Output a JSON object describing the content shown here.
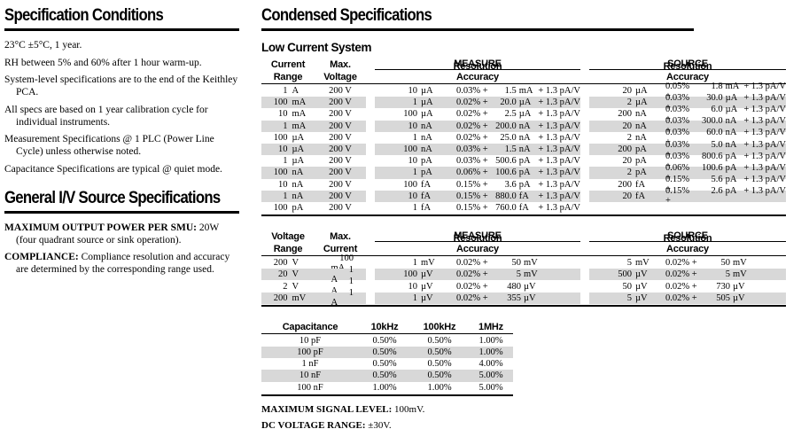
{
  "colors": {
    "stripe_gray": "#d8d8d8",
    "text": "#000000"
  },
  "left": {
    "section1": {
      "title": "Specification Conditions",
      "items": [
        "23°C ±5°C, 1 year.",
        "RH between 5% and 60% after 1 hour warm-up.",
        "System-level specifications are to the end of the Keithley PCA.",
        "All specs are based on 1 year calibration cycle for individual instruments.",
        "Measurement Specifications @ 1 PLC (Power Line Cycle) unless otherwise noted.",
        "Capacitance Specifications are typical @ quiet mode."
      ]
    },
    "section2": {
      "title": "General I/V Source Specifications",
      "items": [
        {
          "label": "MAXIMUM OUTPUT POWER PER SMU:",
          "text": " 20W (four quadrant source or sink operation)."
        },
        {
          "label": "COMPLIANCE:",
          "text": " Compliance resolution and accuracy are determined by the corresponding range used."
        }
      ]
    }
  },
  "right": {
    "title": "Condensed Specifications",
    "low_current": {
      "subtitle": "Low Current System",
      "head": {
        "c1a": "Current",
        "c1b": "Range",
        "c2a": "Max.",
        "c2b": "Voltage",
        "measure": "MEASURE",
        "source": "SOURCE",
        "res": "Resolution",
        "acc": "Accuracy"
      },
      "rows": [
        {
          "rv": "1",
          "ru": "A",
          "mv": "200 V",
          "mrv": "10",
          "mru": "µA",
          "mp": "0.03% +",
          "mval": "1.5",
          "mu": "mA",
          "mt": "+ 1.3 pA/V",
          "srv": "20",
          "sru": "µA",
          "sp": "0.05% +",
          "sval": "1.8",
          "su": "mA",
          "st": "+ 1.3 pA/V"
        },
        {
          "rv": "100",
          "ru": "mA",
          "mv": "200 V",
          "mrv": "1",
          "mru": "µA",
          "mp": "0.02% +",
          "mval": "20.0",
          "mu": "µA",
          "mt": "+ 1.3 pA/V",
          "srv": "2",
          "sru": "µA",
          "sp": "0.03% +",
          "sval": "30.0",
          "su": "µA",
          "st": "+ 1.3 pA/V"
        },
        {
          "rv": "10",
          "ru": "mA",
          "mv": "200 V",
          "mrv": "100",
          "mru": "µA",
          "mp": "0.02% +",
          "mval": "2.5",
          "mu": "µA",
          "mt": "+ 1.3 pA/V",
          "srv": "200",
          "sru": "nA",
          "sp": "0.03% +",
          "sval": "6.0",
          "su": "µA",
          "st": "+ 1.3 pA/V"
        },
        {
          "rv": "1",
          "ru": "mA",
          "mv": "200 V",
          "mrv": "10",
          "mru": "nA",
          "mp": "0.02% +",
          "mval": "200.0",
          "mu": "nA",
          "mt": "+ 1.3 pA/V",
          "srv": "20",
          "sru": "nA",
          "sp": "0.03% +",
          "sval": "300.0",
          "su": "nA",
          "st": "+ 1.3 pA/V"
        },
        {
          "rv": "100",
          "ru": "µA",
          "mv": "200 V",
          "mrv": "1",
          "mru": "nA",
          "mp": "0.02% +",
          "mval": "25.0",
          "mu": "nA",
          "mt": "+ 1.3 pA/V",
          "srv": "2",
          "sru": "nA",
          "sp": "0.03% +",
          "sval": "60.0",
          "su": "nA",
          "st": "+ 1.3 pA/V"
        },
        {
          "rv": "10",
          "ru": "µA",
          "mv": "200 V",
          "mrv": "100",
          "mru": "nA",
          "mp": "0.03% +",
          "mval": "1.5",
          "mu": "nA",
          "mt": "+ 1.3 pA/V",
          "srv": "200",
          "sru": "pA",
          "sp": "0.03% +",
          "sval": "5.0",
          "su": "nA",
          "st": "+ 1.3 pA/V"
        },
        {
          "rv": "1",
          "ru": "µA",
          "mv": "200 V",
          "mrv": "10",
          "mru": "pA",
          "mp": "0.03% +",
          "mval": "500.6",
          "mu": "pA",
          "mt": "+ 1.3 pA/V",
          "srv": "20",
          "sru": "pA",
          "sp": "0.03% +",
          "sval": "800.6",
          "su": "pA",
          "st": "+ 1.3 pA/V"
        },
        {
          "rv": "100",
          "ru": "nA",
          "mv": "200 V",
          "mrv": "1",
          "mru": "pA",
          "mp": "0.06% +",
          "mval": "100.6",
          "mu": "pA",
          "mt": "+ 1.3 pA/V",
          "srv": "2",
          "sru": "pA",
          "sp": "0.06% +",
          "sval": "100.6",
          "su": "pA",
          "st": "+ 1.3 pA/V"
        },
        {
          "rv": "10",
          "ru": "nA",
          "mv": "200 V",
          "mrv": "100",
          "mru": "fA",
          "mp": "0.15% +",
          "mval": "3.6",
          "mu": "pA",
          "mt": "+ 1.3 pA/V",
          "srv": "200",
          "sru": "fA",
          "sp": "0.15% +",
          "sval": "5.6",
          "su": "pA",
          "st": "+ 1.3 pA/V"
        },
        {
          "rv": "1",
          "ru": "nA",
          "mv": "200 V",
          "mrv": "10",
          "mru": "fA",
          "mp": "0.15% +",
          "mval": "880.0",
          "mu": "fA",
          "mt": "+ 1.3 pA/V",
          "srv": "20",
          "sru": "fA",
          "sp": "0.15% +",
          "sval": "2.6",
          "su": "pA",
          "st": "+ 1.3 pA/V"
        },
        {
          "rv": "100",
          "ru": "pA",
          "mv": "200 V",
          "mrv": "1",
          "mru": "fA",
          "mp": "0.15% +",
          "mval": "760.0",
          "mu": "fA",
          "mt": "+ 1.3 pA/V",
          "srv": "",
          "sru": "",
          "sp": "",
          "sval": "",
          "su": "",
          "st": ""
        }
      ]
    },
    "voltage": {
      "head": {
        "c1a": "Voltage",
        "c1b": "Range",
        "c2a": "Max.",
        "c2b": "Current",
        "measure": "MEASURE",
        "source": "SOURCE",
        "res": "Resolution",
        "acc": "Accuracy"
      },
      "rows": [
        {
          "rv": "200",
          "ru": "V",
          "mcv": "100",
          "mcu": "mA",
          "mrv": "1",
          "mru": "mV",
          "mp": "0.02% +",
          "mval": "50",
          "mu": "mV",
          "srv": "5",
          "sru": "mV",
          "sp": "0.02% +",
          "sval": "50",
          "su": "mV"
        },
        {
          "rv": "20",
          "ru": "V",
          "mcv": "1",
          "mcu": "A",
          "mrv": "100",
          "mru": "µV",
          "mp": "0.02% +",
          "mval": "5",
          "mu": "mV",
          "srv": "500",
          "sru": "µV",
          "sp": "0.02% +",
          "sval": "5",
          "su": "mV"
        },
        {
          "rv": "2",
          "ru": "V",
          "mcv": "1",
          "mcu": "A",
          "mrv": "10",
          "mru": "µV",
          "mp": "0.02% +",
          "mval": "480",
          "mu": "µV",
          "srv": "50",
          "sru": "µV",
          "sp": "0.02% +",
          "sval": "730",
          "su": "µV"
        },
        {
          "rv": "200",
          "ru": "mV",
          "mcv": "1",
          "mcu": "A",
          "mrv": "1",
          "mru": "µV",
          "mp": "0.02% +",
          "mval": "355",
          "mu": "µV",
          "srv": "5",
          "sru": "µV",
          "sp": "0.02% +",
          "sval": "505",
          "su": "µV"
        }
      ]
    },
    "capacitance": {
      "head": {
        "c1": "Capacitance",
        "c2": "10kHz",
        "c3": "100kHz",
        "c4": "1MHz"
      },
      "rows": [
        {
          "c": "10 pF",
          "f1": "0.50%",
          "f2": "0.50%",
          "f3": "1.00%"
        },
        {
          "c": "100 pF",
          "f1": "0.50%",
          "f2": "0.50%",
          "f3": "1.00%"
        },
        {
          "c": "1 nF",
          "f1": "0.50%",
          "f2": "0.50%",
          "f3": "4.00%"
        },
        {
          "c": "10 nF",
          "f1": "0.50%",
          "f2": "0.50%",
          "f3": "5.00%"
        },
        {
          "c": "100 nF",
          "f1": "1.00%",
          "f2": "1.00%",
          "f3": "5.00%"
        }
      ]
    },
    "notes": [
      {
        "label": "MAXIMUM SIGNAL LEVEL:",
        "text": " 100mV."
      },
      {
        "label": "DC VOLTAGE RANGE:",
        "text": " ±30V."
      }
    ]
  }
}
